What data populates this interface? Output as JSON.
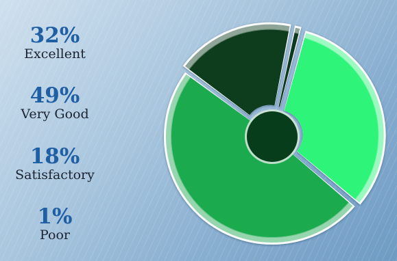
{
  "chart_data": {
    "type": "pie",
    "style": "exploded donut with small dark center",
    "slices": [
      {
        "label": "Excellent",
        "value": 32,
        "display": "32%",
        "color": "#2ff57a"
      },
      {
        "label": "Very Good",
        "value": 49,
        "display": "49%",
        "color": "#1faa4f"
      },
      {
        "label": "Satisfactory",
        "value": 18,
        "display": "18%",
        "color": "#0b3d1c"
      },
      {
        "label": "Poor",
        "value": 1,
        "display": "1%",
        "color": "#103a20"
      }
    ],
    "center_color": "#083d1b",
    "legend_placement": "left"
  }
}
